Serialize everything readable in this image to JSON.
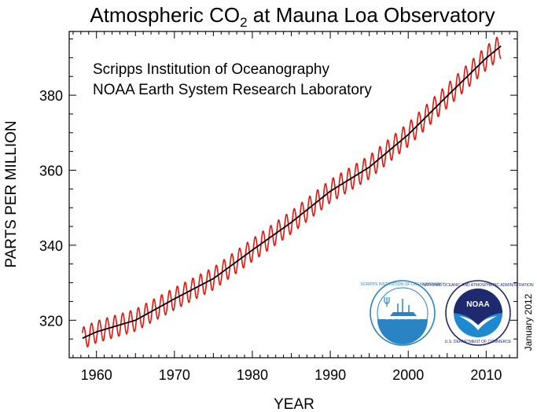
{
  "chart_data": {
    "type": "line",
    "title": {
      "main": "Atmospheric CO",
      "subscript": "2",
      "rest": " at Mauna Loa Observatory"
    },
    "xlabel": "YEAR",
    "ylabel": "PARTS PER MILLION",
    "xlim": [
      1956.5,
      2014
    ],
    "ylim": [
      310,
      397
    ],
    "xticks_major": [
      1960,
      1970,
      1980,
      1990,
      2000,
      2010
    ],
    "yticks_major": [
      320,
      340,
      360,
      380
    ],
    "x_tick_labels": [
      "1960",
      "1970",
      "1980",
      "1990",
      "2000",
      "2010"
    ],
    "y_tick_labels": [
      "320",
      "340",
      "360",
      "380"
    ],
    "institutions": [
      "Scripps Institution of Oceanography",
      "NOAA Earth System Research Laboratory"
    ],
    "date_note": "January 2012",
    "grid": false,
    "series": [
      {
        "kind": "monthly mean (seasonal cycle)",
        "color": "#e8140c",
        "x_start": 1958.2,
        "x_end": 2011.9,
        "seasonal_amplitude_ppm": 3.2
      },
      {
        "kind": "seasonally corrected trend",
        "color": "#000000",
        "x": [
          1958.2,
          1960,
          1965,
          1970,
          1975,
          1980,
          1985,
          1990,
          1995,
          2000,
          2005,
          2010,
          2011.9
        ],
        "values": [
          315.2,
          316.9,
          320.0,
          325.7,
          331.1,
          338.7,
          346.1,
          354.4,
          360.8,
          369.5,
          379.8,
          389.9,
          393.1
        ]
      }
    ]
  },
  "logos": {
    "scripps": {
      "ring_text": "SCRIPPS INSTITUTION OF OCEANOGRAPHY",
      "bottom_text": "UCSD",
      "colors": {
        "ring": "#2a84c4",
        "sea": "#2a84c4"
      }
    },
    "noaa": {
      "ring_text": "NATIONAL OCEANIC AND ATMOSPHERIC ADMINISTRATION",
      "bottom_text": "U.S. DEPARTMENT OF COMMERCE",
      "center_text": "NOAA",
      "colors": {
        "top": "#1f2a6e",
        "bottom": "#1e88d0"
      }
    }
  }
}
